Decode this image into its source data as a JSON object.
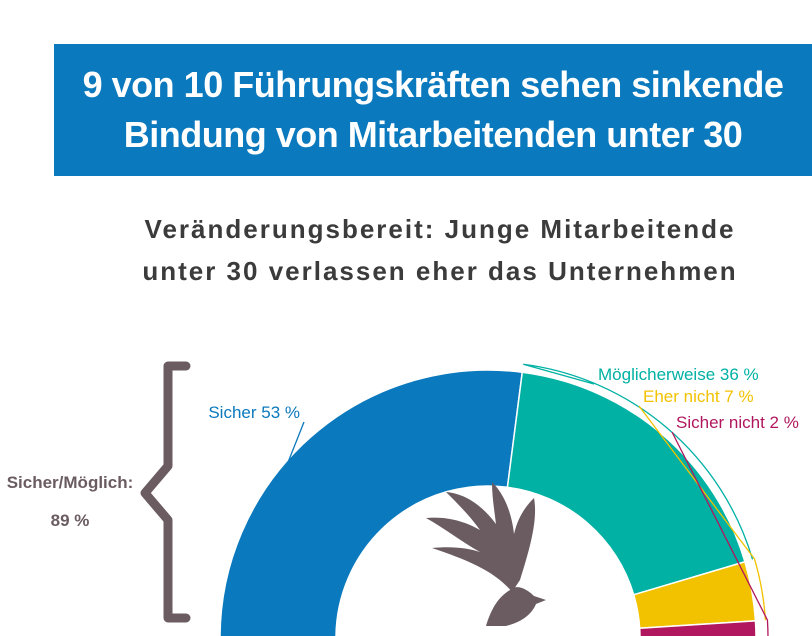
{
  "header": {
    "title_line1": "9 von 10 Führungskräften sehen sinkende",
    "title_line2": "Bindung von Mitarbeitenden unter 30"
  },
  "subtitle": {
    "line1": "Veränderungsbereit: Junge Mitarbeitende",
    "line2": "unter 30 verlassen eher das Unternehmen"
  },
  "brace": {
    "label": "Sicher/Möglich:",
    "value": "89 %"
  },
  "colors": {
    "banner": "#0a79bd",
    "sicher": "#0a79bd",
    "moeglicherweise": "#00b1a4",
    "eher_nicht": "#f2c200",
    "sicher_nicht": "#b0175e",
    "brace": "#6b5c61",
    "bird": "#6b5c61"
  },
  "icon": "bird-icon",
  "chart_data": {
    "type": "pie",
    "style": "half-donut",
    "categories": [
      "Sicher",
      "Möglicherweise",
      "Eher nicht",
      "Sicher nicht"
    ],
    "values": [
      53,
      36,
      7,
      2
    ],
    "labels": [
      "Sicher 53 %",
      "Möglicherweise 36 %",
      "Eher nicht 7 %",
      "Sicher nicht 2 %"
    ],
    "label_colors": [
      "#0a79bd",
      "#00b1a4",
      "#f2c200",
      "#b0175e"
    ]
  }
}
